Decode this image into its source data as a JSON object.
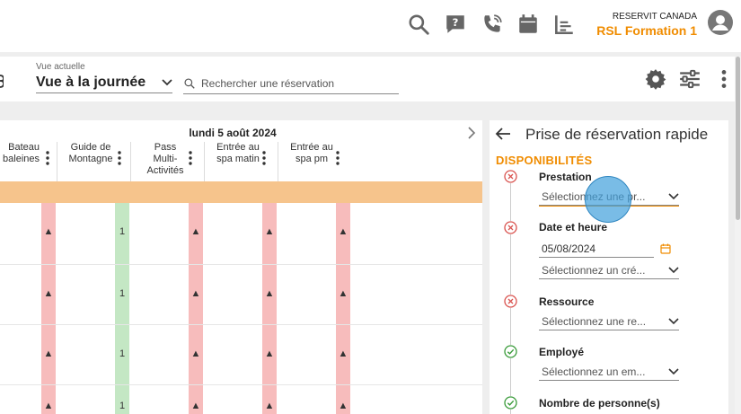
{
  "header": {
    "brand_name": "RESERVIT CANADA",
    "company": "RSL Formation 1",
    "icons": [
      "search-icon",
      "help-icon",
      "phone-icon",
      "calendar-icon",
      "reports-icon",
      "avatar-icon"
    ]
  },
  "toolbar": {
    "view_label": "Vue actuelle",
    "view_value": "Vue à la journée",
    "search_placeholder": "Rechercher une réservation",
    "icons": [
      "settings-icon",
      "filters-icon",
      "more-icon"
    ]
  },
  "calendar": {
    "date": "lundi 5 août 2024",
    "columns": [
      {
        "line1": "Bateau",
        "line2": "baleines",
        "line3": ""
      },
      {
        "line1": "Guide de",
        "line2": "Montagne",
        "line3": ""
      },
      {
        "line1": "Pass",
        "line2": "Multi-",
        "line3": "Activités"
      },
      {
        "line1": "Entrée au",
        "line2": "spa matin",
        "line3": ""
      },
      {
        "line1": "Entrée au",
        "line2": "spa pm",
        "line3": ""
      }
    ],
    "cells": {
      "warning_glyph": "▲",
      "count_value": "1"
    }
  },
  "panel": {
    "title": "Prise de réservation rapide",
    "section": "DISPONIBILITÉS",
    "fields": {
      "prestation": {
        "label": "Prestation",
        "placeholder": "Sélectionnez une pr..."
      },
      "date": {
        "label": "Date et heure",
        "date_value": "05/08/2024",
        "slot_placeholder": "Sélectionnez un cré..."
      },
      "resource": {
        "label": "Ressource",
        "placeholder": "Sélectionnez une re..."
      },
      "employee": {
        "label": "Employé",
        "placeholder": "Sélectionnez un em..."
      },
      "people": {
        "label": "Nombre de personne(s)"
      }
    }
  },
  "colors": {
    "accent": "#f08c00",
    "band": "#f6c48c",
    "unavailable": "#f7bcbc",
    "available": "#c4e7c4",
    "error": "#d9534f",
    "ok": "#3a9b3a"
  }
}
